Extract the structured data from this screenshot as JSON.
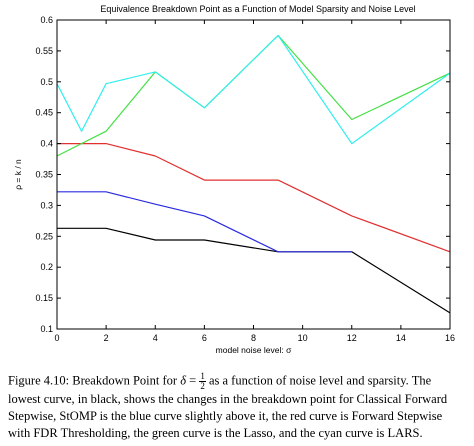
{
  "chart_data": {
    "type": "line",
    "title": "Equivalence Breakdown Point as a Function of Model Sparsity and Noise Level",
    "xlabel": "model noise level: σ",
    "ylabel": "ρ = k / n",
    "xlim": [
      0,
      16
    ],
    "ylim": [
      0.1,
      0.6
    ],
    "xticks": [
      0,
      2,
      4,
      6,
      8,
      10,
      12,
      14,
      16
    ],
    "yticks": [
      0.1,
      0.15,
      0.2,
      0.25,
      0.3,
      0.35,
      0.4,
      0.45,
      0.5,
      0.55,
      0.6
    ],
    "ytick_labels": [
      "0.1",
      "0.15",
      "0.2",
      "0.25",
      "0.3",
      "0.35",
      "0.4",
      "0.45",
      "0.5",
      "0.55",
      "0.6"
    ],
    "grid": false,
    "series": [
      {
        "color": "#000000",
        "x": [
          0,
          2,
          4,
          6,
          9,
          12,
          16
        ],
        "y": [
          0.263,
          0.263,
          0.244,
          0.244,
          0.225,
          0.225,
          0.126
        ]
      },
      {
        "color": "#2b2be0",
        "x": [
          0,
          2,
          4,
          6,
          9,
          12
        ],
        "y": [
          0.322,
          0.322,
          0.302,
          0.283,
          0.225,
          0.225
        ]
      },
      {
        "color": "#e03030",
        "x": [
          0,
          2,
          4,
          6,
          9,
          12,
          16
        ],
        "y": [
          0.4,
          0.4,
          0.38,
          0.341,
          0.341,
          0.283,
          0.225
        ]
      },
      {
        "color": "#44e044",
        "x": [
          0,
          2,
          4,
          6,
          9,
          12,
          16
        ],
        "y": [
          0.38,
          0.42,
          0.516,
          0.458,
          0.575,
          0.439,
          0.514
        ]
      },
      {
        "color": "#33eeee",
        "x": [
          0,
          1,
          2,
          4,
          6,
          9,
          12,
          16
        ],
        "y": [
          0.497,
          0.42,
          0.497,
          0.516,
          0.458,
          0.575,
          0.4,
          0.514
        ]
      }
    ]
  },
  "caption": {
    "part1": "Figure 4.10: Breakdown Point for ",
    "delta": "δ",
    "eq": " = ",
    "num": "1",
    "den": "2",
    "part2": " as a function of noise level and sparsity. The lowest curve, in black, shows the changes in the breakdown point for Classical Forward Stepwise, StOMP is the blue curve slightly above it, the red curve is Forward Stepwise with FDR Thresholding, the green curve is the Lasso, and the cyan curve is LARS."
  }
}
